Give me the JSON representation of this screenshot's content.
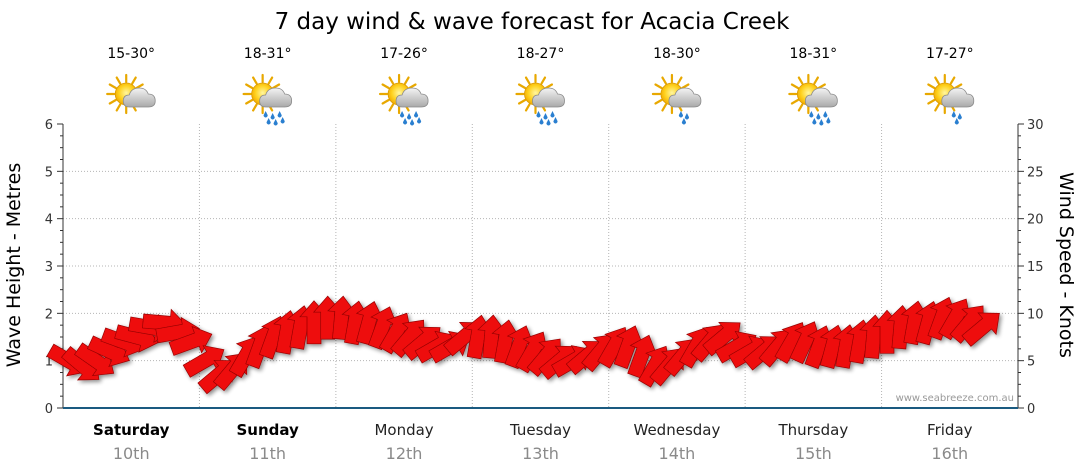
{
  "chart_data": {
    "type": "line",
    "title": "7 day wind & wave forecast for Acacia Creek",
    "ylabel_left": "Wave Height - Metres",
    "ylabel_right": "Wind Speed - Knots",
    "ylim_left": [
      0,
      6
    ],
    "ylim_right": [
      0,
      30
    ],
    "yticks_left": [
      "0",
      "1",
      "2",
      "3",
      "4",
      "5",
      "6"
    ],
    "yticks_right": [
      "0",
      "5",
      "10",
      "15",
      "20",
      "25",
      "30"
    ],
    "grid": true,
    "watermark": "www.seabreeze.com.au",
    "days": [
      {
        "day": "Saturday",
        "date": "10th",
        "temp": "15-30°",
        "weather": "partly-cloudy",
        "bold": true
      },
      {
        "day": "Sunday",
        "date": "11th",
        "temp": "18-31°",
        "weather": "showers",
        "bold": true
      },
      {
        "day": "Monday",
        "date": "12th",
        "temp": "17-26°",
        "weather": "showers",
        "bold": false
      },
      {
        "day": "Tuesday",
        "date": "13th",
        "temp": "18-27°",
        "weather": "showers",
        "bold": false
      },
      {
        "day": "Wednesday",
        "date": "14th",
        "temp": "18-30°",
        "weather": "light-shower",
        "bold": false
      },
      {
        "day": "Thursday",
        "date": "15th",
        "temp": "18-31°",
        "weather": "showers",
        "bold": false
      },
      {
        "day": "Friday",
        "date": "16th",
        "temp": "17-27°",
        "weather": "light-shower",
        "bold": false
      }
    ],
    "series": [
      {
        "kind": "wind-arrows",
        "x_days": [
          0.0,
          0.1,
          0.2,
          0.3,
          0.4,
          0.5,
          0.6,
          0.7,
          0.8,
          0.9,
          1.0,
          1.1,
          1.2,
          1.3,
          1.4,
          1.5,
          1.6,
          1.7,
          1.8,
          1.9,
          2.0,
          2.1,
          2.2,
          2.3,
          2.4,
          2.5,
          2.6,
          2.7,
          2.8,
          2.9,
          3.0,
          3.1,
          3.2,
          3.3,
          3.4,
          3.5,
          3.6,
          3.7,
          3.8,
          3.9,
          4.0,
          4.1,
          4.2,
          4.3,
          4.4,
          4.5,
          4.6,
          4.7,
          4.8,
          4.9,
          5.0,
          5.1,
          5.2,
          5.3,
          5.4,
          5.5,
          5.6,
          5.7,
          5.8,
          5.9,
          6.0,
          6.1,
          6.2,
          6.3,
          6.4,
          6.5,
          6.6,
          6.7
        ],
        "wind_knots": [
          5,
          4.5,
          5,
          6,
          7,
          7.5,
          8.5,
          9,
          8,
          7,
          5,
          3.5,
          4,
          5.5,
          6.5,
          7.5,
          8,
          8.5,
          9,
          9.5,
          9.5,
          9,
          9,
          8.5,
          8,
          7.5,
          7,
          6.5,
          6.5,
          7.5,
          7.5,
          7.5,
          7,
          6.5,
          6,
          5.5,
          5,
          5,
          5.5,
          6,
          6.5,
          6.5,
          5.5,
          4.5,
          4.5,
          5.5,
          6.5,
          7,
          7.5,
          6.5,
          6,
          6,
          6.5,
          7,
          7,
          6.5,
          6.5,
          6.5,
          7,
          7.5,
          8,
          8.5,
          9,
          9,
          9.5,
          9.5,
          9,
          8.5
        ],
        "direction_deg": [
          30,
          40,
          35,
          25,
          20,
          15,
          10,
          5,
          350,
          340,
          330,
          320,
          310,
          300,
          290,
          290,
          280,
          280,
          270,
          270,
          275,
          280,
          285,
          290,
          300,
          310,
          320,
          330,
          330,
          320,
          280,
          275,
          280,
          290,
          300,
          310,
          320,
          330,
          320,
          310,
          300,
          290,
          290,
          300,
          310,
          310,
          300,
          310,
          320,
          330,
          330,
          320,
          310,
          300,
          295,
          290,
          285,
          280,
          280,
          275,
          270,
          275,
          280,
          285,
          290,
          300,
          310,
          320
        ]
      }
    ]
  }
}
